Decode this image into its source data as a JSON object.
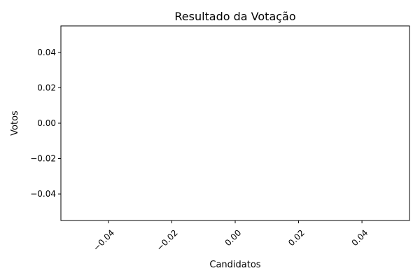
{
  "chart_data": {
    "type": "bar",
    "title": "Resultado da Votação",
    "xlabel": "Candidatos",
    "ylabel": "Votos",
    "categories": [],
    "values": [],
    "xlim": [
      -0.055,
      0.055
    ],
    "ylim": [
      -0.055,
      0.055
    ],
    "x_ticks": [
      -0.04,
      -0.02,
      0.0,
      0.02,
      0.04
    ],
    "x_tick_labels": [
      "−0.04",
      "−0.02",
      "0.00",
      "0.02",
      "0.04"
    ],
    "y_ticks": [
      -0.04,
      -0.02,
      0.0,
      0.02,
      0.04
    ],
    "y_tick_labels": [
      "−0.04",
      "−0.02",
      "0.00",
      "0.02",
      "0.04"
    ],
    "x_tick_rotation": "45 degrees",
    "grid": false,
    "legend": "none",
    "colors": {
      "axes": "#000000",
      "background": "#ffffff"
    }
  }
}
